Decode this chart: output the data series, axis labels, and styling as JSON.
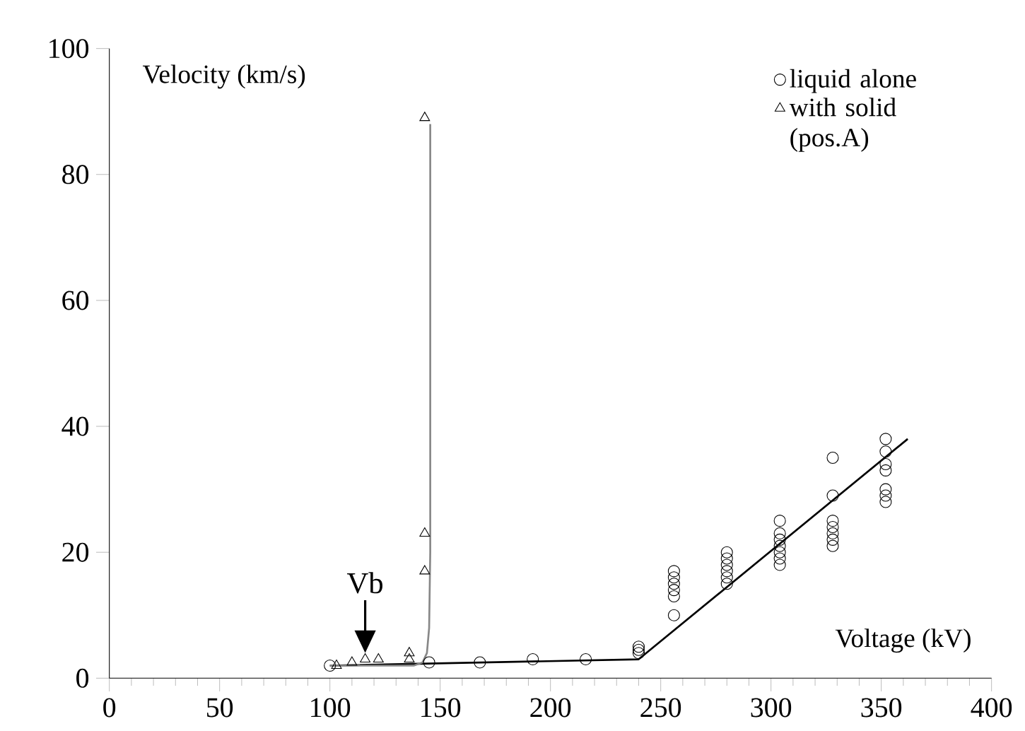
{
  "chart_data": {
    "type": "scatter",
    "xlabel": "Voltage (kV)",
    "ylabel": "Velocity (km/s)",
    "xlim": [
      0,
      400
    ],
    "ylim": [
      0,
      100
    ],
    "xticks": [
      0,
      50,
      100,
      150,
      200,
      250,
      300,
      350,
      400
    ],
    "yticks": [
      0,
      20,
      40,
      60,
      80,
      100
    ],
    "grid": false,
    "legend": "top right",
    "annotations": [
      {
        "text": "Vb",
        "x": 116,
        "y": 4
      }
    ],
    "series": [
      {
        "name": "liquid alone",
        "marker": "circle",
        "color": "#000000",
        "x": [
          100,
          145,
          168,
          192,
          216,
          240,
          240,
          240,
          256,
          256,
          256,
          256,
          256,
          256,
          280,
          280,
          280,
          280,
          280,
          280,
          304,
          304,
          304,
          304,
          304,
          304,
          304,
          328,
          328,
          328,
          328,
          328,
          328,
          328,
          352,
          352,
          352,
          352,
          352,
          352,
          352
        ],
        "values": [
          2,
          2.5,
          2.5,
          3,
          3,
          4,
          4.5,
          5,
          10,
          13,
          14,
          15,
          16,
          17,
          15,
          16,
          17,
          18,
          19,
          20,
          18,
          19,
          20,
          21,
          22,
          23,
          25,
          21,
          22,
          23,
          24,
          25,
          29,
          35,
          28,
          29,
          30,
          33,
          34,
          36,
          38
        ]
      },
      {
        "name": "with solid (pos.A)",
        "marker": "triangle",
        "color": "#000000",
        "x": [
          103,
          110,
          116,
          122,
          136,
          136,
          143,
          143,
          143
        ],
        "values": [
          2,
          2.5,
          3,
          3,
          3,
          4,
          89,
          23,
          17
        ]
      },
      {
        "type": "line",
        "marker": "none",
        "color": "#000000",
        "x": [
          100,
          240,
          362
        ],
        "values": [
          2,
          3,
          38
        ]
      },
      {
        "type": "line",
        "marker": "none",
        "color": "#888888",
        "x": [
          100,
          138,
          142,
          144,
          145,
          145.5,
          145.5
        ],
        "values": [
          2,
          2,
          2.5,
          4,
          8,
          20,
          88
        ]
      }
    ]
  }
}
